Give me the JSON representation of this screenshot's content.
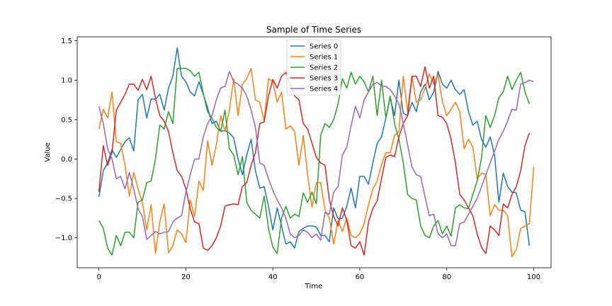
{
  "chart_data": {
    "type": "line",
    "title": "Sample of Time Series",
    "xlabel": "Time",
    "ylabel": "Value",
    "xlim": [
      -5,
      104
    ],
    "ylim": [
      -1.38,
      1.55
    ],
    "x_ticks": [
      0,
      20,
      40,
      60,
      80,
      100
    ],
    "y_ticks": [
      -1.0,
      -0.5,
      0.0,
      0.5,
      1.0,
      1.5
    ],
    "x_tick_labels": [
      "0",
      "20",
      "40",
      "60",
      "80",
      "100"
    ],
    "y_tick_labels": [
      "−1.0",
      "−0.5",
      "0.0",
      "0.5",
      "1.0",
      "1.5"
    ],
    "grid": false,
    "legend_position": "top-center",
    "series": [
      {
        "name": "Series 0",
        "color": "#1f77b4",
        "values": [
          -0.48,
          -0.15,
          -0.05,
          0.12,
          0.02,
          0.12,
          0.22,
          0.27,
          0.1,
          0.75,
          0.82,
          0.52,
          0.76,
          0.76,
          0.82,
          0.62,
          0.9,
          1.05,
          1.41,
          1.05,
          0.98,
          0.85,
          0.8,
          0.98,
          0.82,
          0.65,
          0.45,
          0.48,
          0.35,
          0.36,
          0.33,
          0.27,
          0.0,
          -0.2,
          0.05,
          0.25,
          -0.15,
          -0.37,
          -0.35,
          -0.6,
          -0.9,
          -0.62,
          -0.85,
          -1.08,
          -1.05,
          -1.13,
          -0.92,
          -0.88,
          -0.85,
          -0.85,
          -0.86,
          -0.97,
          -0.97,
          -1.05,
          -0.62,
          -0.76,
          -0.75,
          -0.6,
          -0.37,
          -0.62,
          -0.22,
          -0.22,
          -0.32,
          -0.05,
          0.2,
          0.28,
          0.52,
          0.78,
          0.55,
          1.0,
          0.58,
          0.55,
          0.72,
          0.6,
          0.85,
          0.95,
          0.75,
          0.85,
          1.11,
          0.95,
          0.9,
          1.0,
          0.88,
          0.82,
          0.88,
          0.6,
          0.43,
          0.48,
          0.25,
          0.15,
          0.28,
          0.05,
          -0.55,
          -0.18,
          -0.35,
          -0.42,
          -0.43,
          -0.65,
          -0.67,
          -1.1
        ]
      },
      {
        "name": "Series 1",
        "color": "#ff7f0e",
        "values": [
          0.38,
          0.63,
          0.52,
          0.85,
          0.22,
          0.2,
          -0.08,
          -0.47,
          -0.17,
          -0.38,
          -0.55,
          -0.9,
          -0.58,
          -1.2,
          -0.8,
          -0.57,
          -1.19,
          -1.1,
          -0.9,
          -0.95,
          -1.06,
          -0.52,
          -0.73,
          -0.28,
          -0.4,
          0.23,
          -0.08,
          0.18,
          0.55,
          0.35,
          0.62,
          1.02,
          0.55,
          0.95,
          1.02,
          1.15,
          0.75,
          0.72,
          0.48,
          1.02,
          0.98,
          0.72,
          0.85,
          0.38,
          0.42,
          0.35,
          -0.08,
          0.3,
          -0.2,
          -0.61,
          -0.3,
          -0.3,
          -0.65,
          -0.75,
          -1.08,
          -0.78,
          -0.92,
          -0.75,
          -0.97,
          -1.0,
          -0.95,
          -0.82,
          -0.58,
          -0.38,
          -0.28,
          -0.07,
          0.08,
          0.08,
          0.3,
          0.35,
          1.05,
          0.6,
          1.05,
          0.72,
          0.75,
          0.9,
          1.08,
          0.95,
          1.07,
          0.73,
          0.55,
          0.63,
          0.72,
          0.6,
          0.13,
          0.25,
          0.15,
          -0.25,
          -0.18,
          -0.2,
          -0.72,
          -0.58,
          -0.65,
          -0.65,
          -0.72,
          -1.24,
          -1.15,
          -0.88,
          -0.85,
          -0.82,
          -0.1
        ]
      },
      {
        "name": "Series 2",
        "color": "#2ca02c",
        "values": [
          -0.78,
          -0.88,
          -1.13,
          -1.22,
          -0.97,
          -1.1,
          -0.93,
          -0.93,
          -1.0,
          -0.55,
          -0.52,
          -0.3,
          -0.28,
          0.0,
          0.43,
          0.38,
          0.6,
          0.45,
          1.15,
          1.15,
          1.15,
          1.12,
          1.05,
          1.1,
          0.83,
          0.6,
          0.52,
          0.4,
          0.35,
          0.62,
          0.13,
          0.05,
          -0.2,
          0.03,
          -0.55,
          -0.65,
          -0.7,
          -0.75,
          -0.47,
          -0.88,
          -1.12,
          -1.2,
          -0.75,
          -0.6,
          -0.75,
          -0.7,
          -0.73,
          -0.43,
          -0.55,
          -0.42,
          -0.57,
          0.3,
          0.45,
          0.4,
          0.5,
          0.7,
          1.02,
          0.9,
          1.1,
          0.95,
          1.05,
          0.98,
          0.85,
          1.05,
          0.55,
          1.0,
          0.52,
          0.8,
          0.45,
          0.25,
          -0.05,
          -0.45,
          -0.5,
          -0.52,
          -0.85,
          -0.97,
          -1.0,
          -0.85,
          -0.78,
          -0.95,
          -0.85,
          -0.98,
          -0.62,
          -0.58,
          -0.62,
          -0.63,
          -0.45,
          -0.28,
          0.02,
          0.55,
          0.4,
          0.55,
          0.78,
          0.85,
          1.05,
          0.88,
          1.0,
          1.1,
          0.85,
          0.7
        ]
      },
      {
        "name": "Series 3",
        "color": "#d62728",
        "values": [
          -0.42,
          0.17,
          -0.08,
          0.08,
          0.62,
          0.72,
          0.82,
          0.95,
          0.95,
          0.87,
          1.01,
          0.88,
          1.05,
          0.77,
          0.55,
          0.48,
          0.35,
          0.08,
          -0.15,
          -0.22,
          -0.38,
          -0.63,
          -0.8,
          -0.82,
          -1.13,
          -1.16,
          -1.1,
          -1.0,
          -0.85,
          -0.6,
          -0.58,
          -0.57,
          -0.58,
          -0.35,
          -0.3,
          -0.08,
          0.08,
          0.45,
          0.47,
          0.8,
          1.01,
          0.9,
          1.05,
          1.1,
          0.95,
          0.8,
          0.75,
          0.45,
          0.38,
          0.2,
          0.02,
          -0.05,
          -0.08,
          -0.52,
          -0.73,
          -0.85,
          -0.62,
          -0.78,
          -1.1,
          -1.13,
          -1.05,
          -1.22,
          -0.8,
          -0.63,
          -0.53,
          -0.25,
          0.02,
          0.05,
          0.03,
          0.28,
          0.45,
          0.55,
          1.05,
          1.05,
          0.92,
          1.17,
          0.9,
          1.05,
          0.55,
          0.53,
          0.45,
          0.25,
          -0.05,
          -0.45,
          -0.52,
          -0.62,
          -0.72,
          -0.95,
          -1.12,
          -1.2,
          -0.85,
          -0.9,
          -0.97,
          -0.57,
          -0.62,
          -0.45,
          -0.35,
          -0.15,
          0.17,
          0.33
        ]
      },
      {
        "name": "Series 4",
        "color": "#9467bd",
        "values": [
          0.67,
          0.45,
          0.13,
          0.0,
          -0.25,
          -0.22,
          -0.38,
          -0.17,
          -0.38,
          -0.63,
          -0.73,
          -1.02,
          -0.97,
          -0.92,
          -0.95,
          -0.93,
          -0.92,
          -0.8,
          -0.75,
          -0.72,
          -0.42,
          -0.2,
          0.0,
          0.0,
          0.28,
          0.45,
          0.55,
          0.75,
          0.9,
          0.92,
          1.11,
          0.98,
          0.95,
          0.9,
          0.8,
          0.62,
          0.4,
          -0.05,
          -0.08,
          -0.25,
          -0.4,
          -0.52,
          -0.62,
          -0.75,
          -0.95,
          -1.0,
          -0.97,
          -0.9,
          -0.93,
          -1.0,
          -0.95,
          -1.03,
          -0.68,
          -0.7,
          -0.42,
          -0.35,
          0.05,
          0.15,
          0.42,
          0.67,
          0.52,
          0.75,
          0.85,
          0.95,
          0.97,
          0.93,
          0.92,
          0.88,
          0.8,
          0.7,
          0.45,
          0.18,
          -0.1,
          -0.2,
          -0.22,
          -0.48,
          -0.72,
          -0.7,
          -0.95,
          -1.0,
          -0.95,
          -1.1,
          -1.1,
          -0.82,
          -0.8,
          -0.7,
          -0.6,
          -0.5,
          -0.35,
          -0.2,
          -0.05,
          0.1,
          0.25,
          0.35,
          0.48,
          0.63,
          0.62,
          0.95,
          0.97,
          1.0,
          0.98
        ]
      }
    ]
  }
}
